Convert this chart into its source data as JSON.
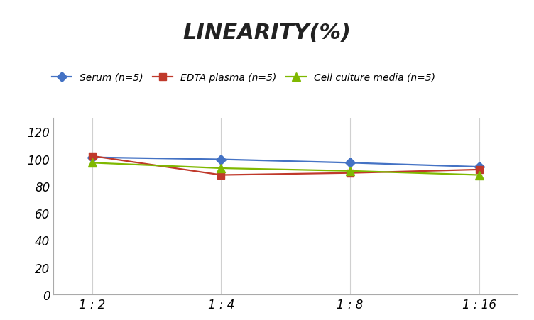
{
  "title": "LINEARITY(%)",
  "title_fontsize": 22,
  "title_fontstyle": "italic",
  "title_fontweight": "bold",
  "x_labels": [
    "1 : 2",
    "1 : 4",
    "1 : 8",
    "1 : 16"
  ],
  "x_positions": [
    0,
    1,
    2,
    3
  ],
  "series": [
    {
      "label": "Serum (n=5)",
      "values": [
        101,
        99.5,
        97,
        94
      ],
      "color": "#4472C4",
      "marker": "D",
      "markersize": 7,
      "linewidth": 1.6
    },
    {
      "label": "EDTA plasma (n=5)",
      "values": [
        102,
        88,
        89.5,
        92
      ],
      "color": "#C0392B",
      "marker": "s",
      "markersize": 7,
      "linewidth": 1.6
    },
    {
      "label": "Cell culture media (n=5)",
      "values": [
        97,
        93,
        91,
        88
      ],
      "color": "#7FB800",
      "marker": "^",
      "markersize": 8,
      "linewidth": 1.6
    }
  ],
  "ylim": [
    0,
    130
  ],
  "yticks": [
    0,
    20,
    40,
    60,
    80,
    100,
    120
  ],
  "background_color": "#ffffff",
  "grid_color": "#d0d0d0",
  "legend_fontsize": 10,
  "tick_fontsize": 12,
  "axis_label_color": "#555555"
}
